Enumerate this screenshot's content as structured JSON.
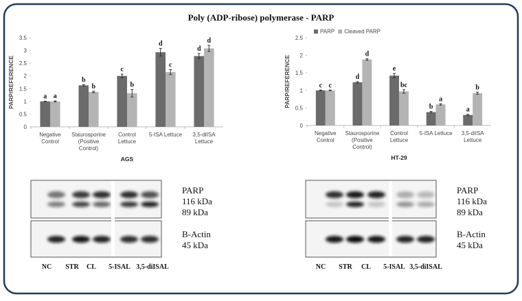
{
  "title": "Poly (ADP-ribose) polymerase - PARP",
  "chart_data": [
    {
      "type": "bar",
      "xlabel": "AGS",
      "ylabel": "PARP/REFERENCE",
      "categories": [
        "Negative Control",
        "Staurosporine (Positive Control)",
        "Control Lettuce",
        "5-ISA Lettuce",
        "3,5-diISA Lettuce"
      ],
      "series": [
        {
          "color": "#6b6b6b",
          "values": [
            1.0,
            1.63,
            2.0,
            2.93,
            2.78
          ],
          "errors": [
            0.01,
            0.03,
            0.07,
            0.15,
            0.1
          ],
          "letters": [
            "a",
            "b",
            "c",
            "d",
            "d"
          ]
        },
        {
          "color": "#b4b4b4",
          "values": [
            1.0,
            1.37,
            1.32,
            2.15,
            3.08
          ],
          "errors": [
            0.02,
            0.03,
            0.15,
            0.1,
            0.12
          ],
          "letters": [
            "a",
            "b",
            "b",
            "c",
            "d"
          ]
        }
      ],
      "ylim": [
        0,
        3.5
      ],
      "yticks": [
        0,
        0.5,
        1,
        1.5,
        2,
        2.5,
        3,
        3.5
      ],
      "grid": false,
      "legend": false
    },
    {
      "type": "bar",
      "xlabel": "HT-29",
      "ylabel": "PARP/REFERENCE",
      "categories": [
        "Negative Control",
        "Staurosporine (Positive Control)",
        "Control Lettuce",
        "5-ISA Lettuce",
        "3,5-diISA Lettuce"
      ],
      "series": [
        {
          "name": "PARP",
          "color": "#6b6b6b",
          "values": [
            1.0,
            1.23,
            1.42,
            0.38,
            0.3
          ],
          "errors": [
            0.01,
            0.02,
            0.06,
            0.02,
            0.02
          ],
          "letters": [
            "c",
            "d",
            "e",
            "b",
            "a"
          ]
        },
        {
          "name": "Cleaved PARP",
          "color": "#b4b4b4",
          "values": [
            1.0,
            1.88,
            0.97,
            0.6,
            0.92
          ],
          "errors": [
            0.01,
            0.02,
            0.05,
            0.02,
            0.03
          ],
          "letters": [
            "c",
            "d",
            "bc",
            "a",
            "b"
          ]
        }
      ],
      "ylim": [
        0,
        2.5
      ],
      "yticks": [
        0,
        0.5,
        1,
        1.5,
        2,
        2.5
      ],
      "grid": false,
      "legend": "top-left"
    }
  ],
  "blots": [
    {
      "protein_labels": [
        "PARP",
        "116 kDa",
        "89 kDa"
      ],
      "reference_labels": [
        "B-Actin",
        "45 kDa"
      ],
      "lanes": [
        "NC",
        "STR",
        "CL",
        "5-ISAL",
        "3,5-diISAL"
      ]
    },
    {
      "protein_labels": [
        "PARP",
        "116 kDa",
        "89 kDa"
      ],
      "reference_labels": [
        "B-Actin",
        "45 kDa"
      ],
      "lanes": [
        "NC",
        "STR",
        "CL",
        "5-ISAL",
        "3,5-diISAL"
      ]
    }
  ]
}
